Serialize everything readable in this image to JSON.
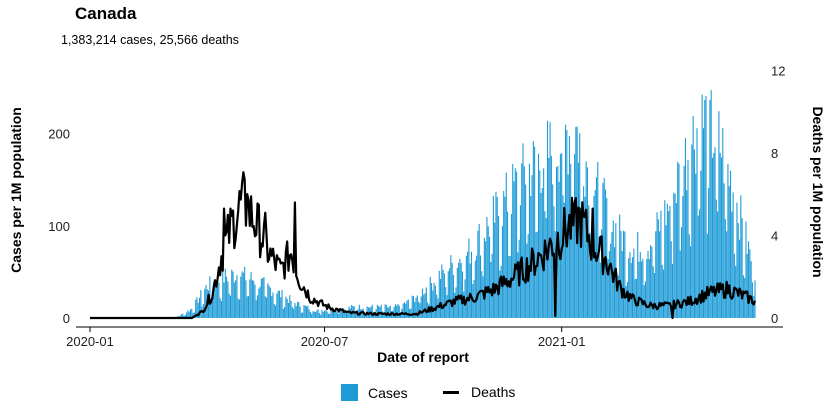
{
  "header": {
    "title": "Canada",
    "subtitle": "1,383,214 cases, 25,566 deaths"
  },
  "legend": {
    "cases_label": "Cases",
    "deaths_label": "Deaths"
  },
  "colors": {
    "cases": "#1e9bd7",
    "deaths": "#000000"
  },
  "chart_data": {
    "type": "bar",
    "title": "Canada",
    "subtitle": "1,383,214 cases, 25,566 deaths",
    "xlabel": "Date of report",
    "ylabel": "Cases per 1M population",
    "y2label": "Deaths per 1M population",
    "x_ticks": [
      "2020-01",
      "2020-07",
      "2021-01"
    ],
    "ylim": [
      0,
      280
    ],
    "y_ticks": [
      0,
      100,
      200
    ],
    "y2lim": [
      0,
      12.5
    ],
    "y2_ticks": [
      0,
      4,
      8,
      12
    ],
    "x_range": [
      "2020-01-01",
      "2021-05-31"
    ],
    "grid": false,
    "legend_position": "bottom",
    "series": [
      {
        "name": "Cases",
        "kind": "bar",
        "axis": "left",
        "points": [
          [
            "2020-03-01",
            0
          ],
          [
            "2020-03-10",
            2
          ],
          [
            "2020-03-20",
            10
          ],
          [
            "2020-04-01",
            35
          ],
          [
            "2020-04-15",
            45
          ],
          [
            "2020-04-25",
            48
          ],
          [
            "2020-05-10",
            40
          ],
          [
            "2020-05-25",
            28
          ],
          [
            "2020-06-10",
            15
          ],
          [
            "2020-06-25",
            8
          ],
          [
            "2020-07-10",
            10
          ],
          [
            "2020-07-25",
            12
          ],
          [
            "2020-08-10",
            12
          ],
          [
            "2020-08-25",
            12
          ],
          [
            "2020-09-05",
            18
          ],
          [
            "2020-09-20",
            35
          ],
          [
            "2020-10-05",
            55
          ],
          [
            "2020-10-20",
            70
          ],
          [
            "2020-11-05",
            100
          ],
          [
            "2020-11-20",
            130
          ],
          [
            "2020-12-05",
            160
          ],
          [
            "2020-12-20",
            175
          ],
          [
            "2021-01-05",
            200
          ],
          [
            "2021-01-12",
            205
          ],
          [
            "2021-01-25",
            150
          ],
          [
            "2021-02-10",
            100
          ],
          [
            "2021-02-25",
            75
          ],
          [
            "2021-03-10",
            80
          ],
          [
            "2021-03-25",
            120
          ],
          [
            "2021-04-05",
            165
          ],
          [
            "2021-04-15",
            205
          ],
          [
            "2021-04-22",
            215
          ],
          [
            "2021-05-05",
            185
          ],
          [
            "2021-05-15",
            135
          ],
          [
            "2021-05-25",
            80
          ],
          [
            "2021-05-31",
            50
          ]
        ]
      },
      {
        "name": "Deaths",
        "kind": "line",
        "axis": "right",
        "points": [
          [
            "2020-01-01",
            0
          ],
          [
            "2020-03-20",
            0
          ],
          [
            "2020-03-28",
            0.3
          ],
          [
            "2020-04-05",
            1.2
          ],
          [
            "2020-04-12",
            3.0
          ],
          [
            "2020-04-20",
            4.5
          ],
          [
            "2020-04-28",
            5.6
          ],
          [
            "2020-05-05",
            5.0
          ],
          [
            "2020-05-12",
            4.2
          ],
          [
            "2020-05-20",
            3.0
          ],
          [
            "2020-05-28",
            2.3
          ],
          [
            "2020-06-05",
            3.2
          ],
          [
            "2020-06-12",
            1.8
          ],
          [
            "2020-06-20",
            1.0
          ],
          [
            "2020-06-28",
            0.7
          ],
          [
            "2020-07-05",
            0.5
          ],
          [
            "2020-07-20",
            0.25
          ],
          [
            "2020-08-10",
            0.2
          ],
          [
            "2020-09-10",
            0.2
          ],
          [
            "2020-09-25",
            0.5
          ],
          [
            "2020-10-10",
            0.8
          ],
          [
            "2020-10-25",
            1.0
          ],
          [
            "2020-11-10",
            1.4
          ],
          [
            "2020-11-25",
            2.0
          ],
          [
            "2020-12-10",
            2.7
          ],
          [
            "2020-12-25",
            3.6
          ],
          [
            "2021-01-05",
            4.3
          ],
          [
            "2021-01-15",
            4.8
          ],
          [
            "2021-01-25",
            3.6
          ],
          [
            "2021-02-05",
            2.8
          ],
          [
            "2021-02-15",
            1.5
          ],
          [
            "2021-02-25",
            0.9
          ],
          [
            "2021-03-10",
            0.6
          ],
          [
            "2021-03-25",
            0.6
          ],
          [
            "2021-04-10",
            0.8
          ],
          [
            "2021-04-25",
            1.2
          ],
          [
            "2021-05-10",
            1.4
          ],
          [
            "2021-05-25",
            1.0
          ],
          [
            "2021-05-31",
            0.8
          ]
        ],
        "peaks": [
          [
            "2020-04-14",
            5.3
          ],
          [
            "2020-05-02",
            6.0
          ],
          [
            "2020-05-16",
            5.1
          ],
          [
            "2020-06-08",
            5.6
          ],
          [
            "2021-01-11",
            5.6
          ],
          [
            "2021-01-25",
            5.3
          ]
        ],
        "dips": [
          [
            "2020-12-27",
            0.1
          ],
          [
            "2021-03-28",
            0.0
          ]
        ]
      }
    ]
  }
}
